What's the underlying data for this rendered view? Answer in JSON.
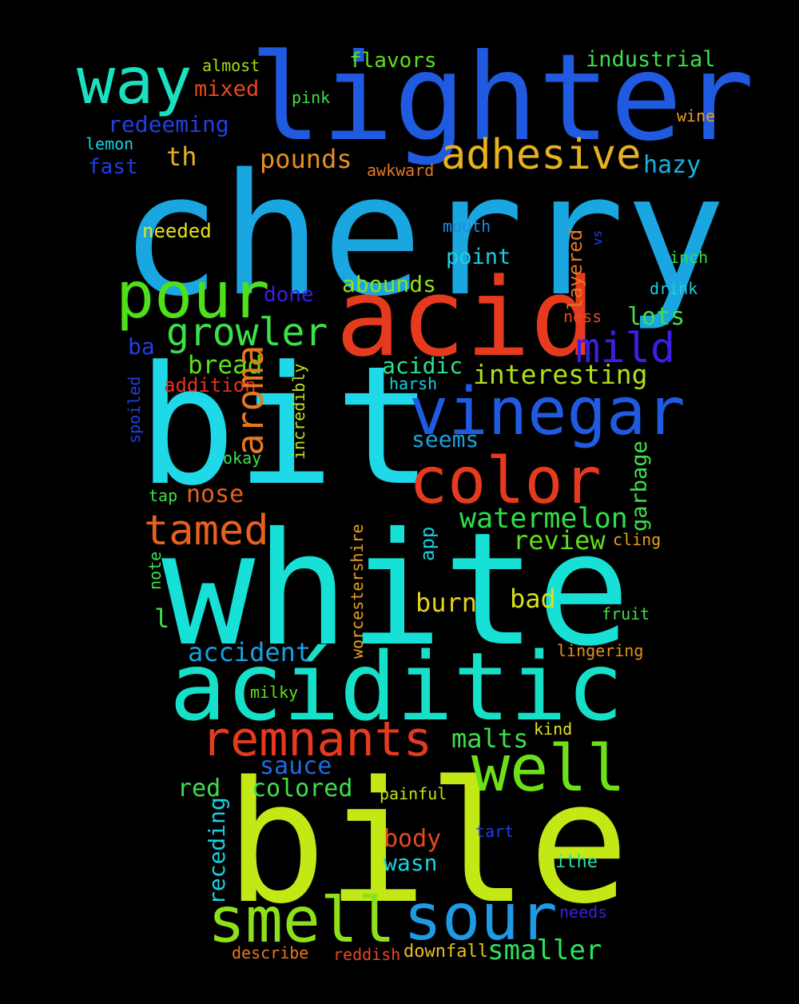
{
  "words": [
    {
      "text": "cherry",
      "color": "#1aa6e0"
    },
    {
      "text": "white",
      "color": "#17e0d6"
    },
    {
      "text": "bit",
      "color": "#1fd8e8"
    },
    {
      "text": "bile",
      "color": "#c2e816"
    },
    {
      "text": "lighter",
      "color": "#1f5ae0"
    },
    {
      "text": "acid",
      "color": "#e63a1f"
    },
    {
      "text": "acíditic",
      "color": "#17e0c8"
    },
    {
      "text": "vinegar",
      "color": "#1f5ae0"
    },
    {
      "text": "color",
      "color": "#e63a1f"
    },
    {
      "text": "pour",
      "color": "#4ee01a"
    },
    {
      "text": "way",
      "color": "#1ae0c0"
    },
    {
      "text": "well",
      "color": "#6ee01a"
    },
    {
      "text": "sour",
      "color": "#1f9ae6"
    },
    {
      "text": "smell",
      "color": "#8ee01a"
    },
    {
      "text": "remnants",
      "color": "#e63a1f"
    },
    {
      "text": "adhesive",
      "color": "#e6b01f"
    },
    {
      "text": "growler",
      "color": "#3ee04a"
    },
    {
      "text": "aroma",
      "color": "#e6781f"
    },
    {
      "text": "tamed",
      "color": "#e6601f"
    },
    {
      "text": "mild",
      "color": "#3a1fe6"
    },
    {
      "text": "watermelon",
      "color": "#2ee04a"
    },
    {
      "text": "interesting",
      "color": "#b0e01a"
    },
    {
      "text": "accident",
      "color": "#1aa0e0"
    },
    {
      "text": "burn",
      "color": "#e6d01f"
    },
    {
      "text": "bad",
      "color": "#d8e01a"
    },
    {
      "text": "review",
      "color": "#5ee01a"
    },
    {
      "text": "malts",
      "color": "#3ee04a"
    },
    {
      "text": "sauce",
      "color": "#1f6ae6"
    },
    {
      "text": "colored",
      "color": "#3ee04a"
    },
    {
      "text": "red",
      "color": "#3ee04a"
    },
    {
      "text": "body",
      "color": "#e6481f"
    },
    {
      "text": "wasn",
      "color": "#1ad0e0"
    },
    {
      "text": "smaller",
      "color": "#2ee060"
    },
    {
      "text": "pounds",
      "color": "#e6901f"
    },
    {
      "text": "th",
      "color": "#e6b01f"
    },
    {
      "text": "redeeming",
      "color": "#1f40e6"
    },
    {
      "text": "hazy",
      "color": "#1ab0e0"
    },
    {
      "text": "industrial",
      "color": "#3ee04a"
    },
    {
      "text": "flavors",
      "color": "#5ee01a"
    },
    {
      "text": "mixed",
      "color": "#e6481f"
    },
    {
      "text": "almost",
      "color": "#a0e01a"
    },
    {
      "text": "pink",
      "color": "#3ee04a"
    },
    {
      "text": "lemon",
      "color": "#1ad0e0"
    },
    {
      "text": "fast",
      "color": "#1f40e6"
    },
    {
      "text": "awkward",
      "color": "#e6781f"
    },
    {
      "text": "wine",
      "color": "#e6a01f"
    },
    {
      "text": "needed",
      "color": "#e6e01f"
    },
    {
      "text": "mouth",
      "color": "#1a90e0"
    },
    {
      "text": "point",
      "color": "#1ad0e0"
    },
    {
      "text": "done",
      "color": "#3a1fe6"
    },
    {
      "text": "abounds",
      "color": "#8ee01a"
    },
    {
      "text": "lots",
      "color": "#3ee04a"
    },
    {
      "text": "inch",
      "color": "#2ee04a"
    },
    {
      "text": "drink",
      "color": "#1ad0e0"
    },
    {
      "text": "ness",
      "color": "#e6481f"
    },
    {
      "text": "ba",
      "color": "#1f40e6"
    },
    {
      "text": "bread",
      "color": "#5ee01a"
    },
    {
      "text": "acidic",
      "color": "#2ee08a"
    },
    {
      "text": "addition",
      "color": "#e6301f"
    },
    {
      "text": "harsh",
      "color": "#1ad0e0"
    },
    {
      "text": "seems",
      "color": "#1aa0e0"
    },
    {
      "text": "okay",
      "color": "#3ee04a"
    },
    {
      "text": "tap",
      "color": "#3ee04a"
    },
    {
      "text": "nose",
      "color": "#e6601f"
    },
    {
      "text": "cling",
      "color": "#e6a01f"
    },
    {
      "text": "fruit",
      "color": "#3ee04a"
    },
    {
      "text": "lingering",
      "color": "#e6901f"
    },
    {
      "text": "l",
      "color": "#3ee04a"
    },
    {
      "text": "milky",
      "color": "#5ee01a"
    },
    {
      "text": "kind",
      "color": "#e6e01f"
    },
    {
      "text": "painful",
      "color": "#c0e01a"
    },
    {
      "text": "tart",
      "color": "#1f40e6"
    },
    {
      "text": "ithe",
      "color": "#2ee0a0"
    },
    {
      "text": "needs",
      "color": "#3a1fe6"
    },
    {
      "text": "describe",
      "color": "#e6781f"
    },
    {
      "text": "reddish",
      "color": "#e6481f"
    },
    {
      "text": "downfall",
      "color": "#e6c01f"
    },
    {
      "text": "layered",
      "color": "#e6781f"
    },
    {
      "text": "vs",
      "color": "#1f40e6"
    },
    {
      "text": "incredibly",
      "color": "#c0e01a"
    },
    {
      "text": "spoiled",
      "color": "#1f40e6"
    },
    {
      "text": "garbage",
      "color": "#3ee04a"
    },
    {
      "text": "app",
      "color": "#1ad0e0"
    },
    {
      "text": "worcestershire",
      "color": "#e6a01f"
    },
    {
      "text": "note",
      "color": "#3ee04a"
    },
    {
      "text": "receding",
      "color": "#1ad0e0"
    }
  ]
}
